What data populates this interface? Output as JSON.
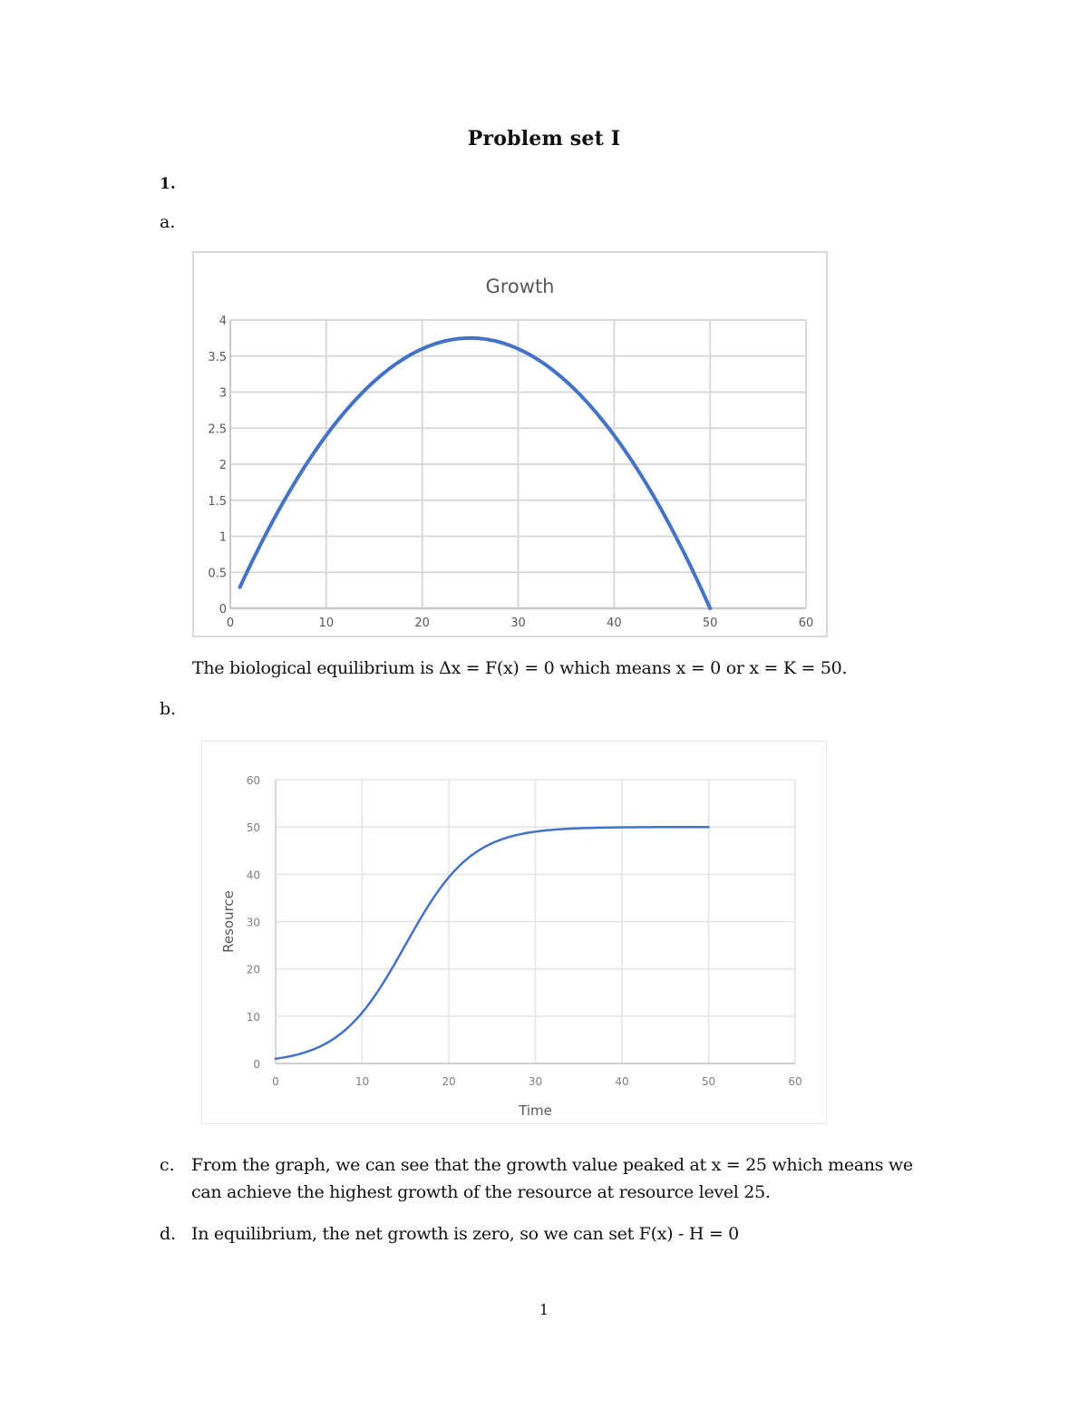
{
  "document": {
    "title": "Problem set I",
    "question_number": "1.",
    "parts": {
      "a": {
        "label": "a.",
        "text": "The biological equilibrium is Δx = F(x) = 0 which means x = 0 or x = K = 50."
      },
      "b": {
        "label": "b."
      },
      "c": {
        "label": "c.",
        "line1": "From the graph, we can see that the growth value peaked at x = 25 which means we",
        "line2": "can achieve the highest growth of the resource at resource level 25."
      },
      "d": {
        "label": "d.",
        "text": "In equilibrium, the net growth is zero, so we can set F(x) - H = 0"
      }
    },
    "page_number": "1"
  },
  "chart_data": [
    {
      "type": "line",
      "title": "Growth",
      "xlabel": "",
      "ylabel": "",
      "xlim": [
        0,
        60
      ],
      "ylim": [
        0,
        4
      ],
      "x_ticks": [
        "0",
        "10",
        "20",
        "30",
        "40",
        "50",
        "60"
      ],
      "y_ticks": [
        "0",
        "0.5",
        "1",
        "1.5",
        "2",
        "2.5",
        "3",
        "3.5",
        "4"
      ],
      "grid": true,
      "legend": "none",
      "line_color": "#4472c4",
      "series": [
        {
          "name": "Growth",
          "x": [
            1,
            5,
            10,
            15,
            20,
            25,
            30,
            35,
            40,
            45,
            50
          ],
          "values": [
            0.29,
            1.35,
            2.4,
            3.15,
            3.6,
            3.75,
            3.6,
            3.15,
            2.4,
            1.35,
            0
          ]
        }
      ]
    },
    {
      "type": "line",
      "title": "",
      "xlabel": "Time",
      "ylabel": "Resource",
      "xlim": [
        0,
        60
      ],
      "ylim": [
        0,
        60
      ],
      "x_ticks": [
        "0",
        "10",
        "20",
        "30",
        "40",
        "50",
        "60"
      ],
      "y_ticks": [
        "0",
        "10",
        "20",
        "30",
        "40",
        "50",
        "60"
      ],
      "grid": true,
      "legend": "none",
      "line_color": "#4472c4",
      "series": [
        {
          "name": "Resource",
          "x": [
            0,
            2,
            4,
            6,
            8,
            10,
            12,
            14,
            16,
            18,
            20,
            22,
            24,
            26,
            28,
            30,
            35,
            40,
            45,
            50
          ],
          "values": [
            1,
            1.8,
            3.1,
            4.9,
            7.8,
            11.5,
            17.5,
            24.5,
            31.5,
            38,
            43,
            46.3,
            48.3,
            49.2,
            49.6,
            49.8,
            50,
            50,
            50,
            50
          ]
        }
      ]
    }
  ]
}
